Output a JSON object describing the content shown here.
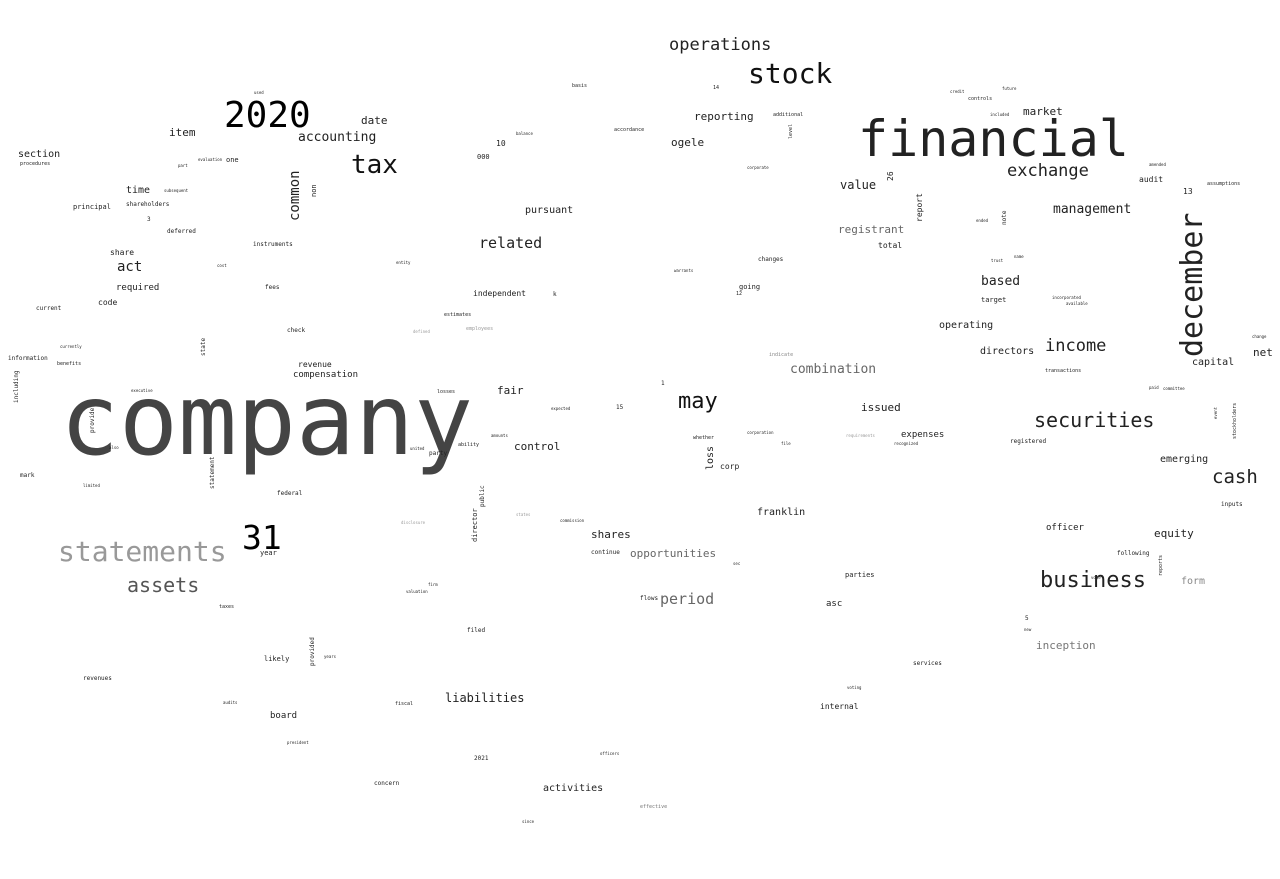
{
  "words": [
    {
      "text": "company",
      "shade": "#444444"
    },
    {
      "text": "financial",
      "shade": "#222222"
    },
    {
      "text": "2020",
      "shade": "#000000"
    },
    {
      "text": "statements",
      "shade": "#999999"
    },
    {
      "text": "december",
      "shade": "#222222"
    },
    {
      "text": "stock",
      "shade": "#111111"
    },
    {
      "text": "tax",
      "shade": "#111111"
    },
    {
      "text": "31",
      "shade": "#000000"
    },
    {
      "text": "business",
      "shade": "#222222"
    },
    {
      "text": "securities",
      "shade": "#222222"
    },
    {
      "text": "assets",
      "shade": "#555555"
    },
    {
      "text": "may",
      "shade": "#111111"
    },
    {
      "text": "cash",
      "shade": "#222222"
    },
    {
      "text": "operations",
      "shade": "#222222"
    },
    {
      "text": "exchange",
      "shade": "#222222"
    },
    {
      "text": "income",
      "shade": "#222222"
    },
    {
      "text": "related",
      "shade": "#222222"
    },
    {
      "text": "period",
      "shade": "#666666"
    },
    {
      "text": "common",
      "shade": "#222222"
    },
    {
      "text": "management",
      "shade": "#222222"
    },
    {
      "text": "combination",
      "shade": "#666666"
    },
    {
      "text": "act",
      "shade": "#222222"
    },
    {
      "text": "accounting",
      "shade": "#222222"
    },
    {
      "text": "liabilities",
      "shade": "#222222"
    },
    {
      "text": "based",
      "shade": "#222222"
    },
    {
      "text": "value",
      "shade": "#222222"
    },
    {
      "text": "registrant",
      "shade": "#666666"
    },
    {
      "text": "equity",
      "shade": "#222222"
    },
    {
      "text": "opportunities",
      "shade": "#666666"
    },
    {
      "text": "reporting",
      "shade": "#222222"
    },
    {
      "text": "ogele",
      "shade": "#222222"
    },
    {
      "text": "market",
      "shade": "#222222"
    },
    {
      "text": "item",
      "shade": "#222222"
    },
    {
      "text": "date",
      "shade": "#222222"
    },
    {
      "text": "time",
      "shade": "#222222"
    },
    {
      "text": "section",
      "shade": "#222222"
    },
    {
      "text": "pursuant",
      "shade": "#222222"
    },
    {
      "text": "fair",
      "shade": "#222222"
    },
    {
      "text": "control",
      "shade": "#222222"
    },
    {
      "text": "shares",
      "shade": "#222222"
    },
    {
      "text": "issued",
      "shade": "#222222"
    },
    {
      "text": "expenses",
      "shade": "#222222"
    },
    {
      "text": "emerging",
      "shade": "#222222"
    },
    {
      "text": "capital",
      "shade": "#222222"
    },
    {
      "text": "net",
      "shade": "#222222"
    },
    {
      "text": "directors",
      "shade": "#222222"
    },
    {
      "text": "operating",
      "shade": "#222222"
    },
    {
      "text": "audit",
      "shade": "#222222"
    },
    {
      "text": "activities",
      "shade": "#222222"
    },
    {
      "text": "franklin",
      "shade": "#222222"
    },
    {
      "text": "inception",
      "shade": "#777777"
    },
    {
      "text": "form",
      "shade": "#888888"
    },
    {
      "text": "compensation",
      "shade": "#222222"
    },
    {
      "text": "required",
      "shade": "#222222"
    },
    {
      "text": "loss",
      "shade": "#222222"
    },
    {
      "text": "officer",
      "shade": "#222222"
    },
    {
      "text": "revenue",
      "shade": "#222222"
    },
    {
      "text": "asc",
      "shade": "#222222"
    },
    {
      "text": "board",
      "shade": "#222222"
    },
    {
      "text": "internal",
      "shade": "#222222"
    },
    {
      "text": "independent",
      "shade": "#222222"
    },
    {
      "text": "share",
      "shade": "#222222"
    },
    {
      "text": "code",
      "shade": "#222222"
    },
    {
      "text": "principal",
      "shade": "#222222"
    },
    {
      "text": "report",
      "shade": "#222222"
    },
    {
      "text": "total",
      "shade": "#222222"
    },
    {
      "text": "likely",
      "shade": "#222222"
    },
    {
      "text": "corp",
      "shade": "#222222"
    },
    {
      "text": "target",
      "shade": "#222222"
    },
    {
      "text": "parties",
      "shade": "#222222"
    },
    {
      "text": "director",
      "shade": "#222222"
    },
    {
      "text": "public",
      "shade": "#222222"
    },
    {
      "text": "year",
      "shade": "#222222"
    },
    {
      "text": "one",
      "shade": "#222222"
    },
    {
      "text": "10",
      "shade": "#222222"
    },
    {
      "text": "13",
      "shade": "#222222"
    },
    {
      "text": "26",
      "shade": "#222222"
    },
    {
      "text": "going",
      "shade": "#222222"
    },
    {
      "text": "changes",
      "shade": "#222222"
    },
    {
      "text": "information",
      "shade": "#222222"
    },
    {
      "text": "current",
      "shade": "#222222"
    },
    {
      "text": "shareholders",
      "shade": "#222222"
    },
    {
      "text": "deferred",
      "shade": "#222222"
    },
    {
      "text": "instruments",
      "shade": "#222222"
    },
    {
      "text": "non",
      "shade": "#222222"
    },
    {
      "text": "state",
      "shade": "#222222"
    },
    {
      "text": "fees",
      "shade": "#222222"
    },
    {
      "text": "check",
      "shade": "#222222"
    },
    {
      "text": "federal",
      "shade": "#222222"
    },
    {
      "text": "filed",
      "shade": "#222222"
    },
    {
      "text": "continue",
      "shade": "#222222"
    },
    {
      "text": "services",
      "shade": "#222222"
    },
    {
      "text": "registered",
      "shade": "#222222"
    },
    {
      "text": "transactions",
      "shade": "#222222"
    },
    {
      "text": "following",
      "shade": "#222222"
    },
    {
      "text": "provided",
      "shade": "#222222"
    },
    {
      "text": "statement",
      "shade": "#222222"
    },
    {
      "text": "including",
      "shade": "#222222"
    },
    {
      "text": "mark",
      "shade": "#222222"
    },
    {
      "text": "revenues",
      "shade": "#222222"
    },
    {
      "text": "party",
      "shade": "#222222"
    },
    {
      "text": "ability",
      "shade": "#222222"
    },
    {
      "text": "losses",
      "shade": "#222222"
    },
    {
      "text": "benefits",
      "shade": "#222222"
    },
    {
      "text": "provide",
      "shade": "#222222"
    },
    {
      "text": "inputs",
      "shade": "#222222"
    },
    {
      "text": "stockholders",
      "shade": "#222222"
    },
    {
      "text": "reports",
      "shade": "#222222"
    },
    {
      "text": "note",
      "shade": "#222222"
    },
    {
      "text": "2021",
      "shade": "#222222"
    },
    {
      "text": "concern",
      "shade": "#222222"
    },
    {
      "text": "flows",
      "shade": "#222222"
    },
    {
      "text": "fiscal",
      "shade": "#222222"
    },
    {
      "text": "taxes",
      "shade": "#222222"
    },
    {
      "text": "000",
      "shade": "#222222"
    },
    {
      "text": "3",
      "shade": "#222222"
    },
    {
      "text": "1",
      "shade": "#222222"
    },
    {
      "text": "15",
      "shade": "#222222"
    },
    {
      "text": "5",
      "shade": "#222222"
    },
    {
      "text": "14",
      "shade": "#222222"
    },
    {
      "text": "k",
      "shade": "#222222"
    },
    {
      "text": "basis",
      "shade": "#222222"
    },
    {
      "text": "used",
      "shade": "#222222"
    },
    {
      "text": "procedures",
      "shade": "#222222"
    },
    {
      "text": "part",
      "shade": "#222222"
    },
    {
      "text": "evaluation",
      "shade": "#222222"
    },
    {
      "text": "subsequent",
      "shade": "#222222"
    },
    {
      "text": "cost",
      "shade": "#222222"
    },
    {
      "text": "entity",
      "shade": "#222222"
    },
    {
      "text": "balance",
      "shade": "#222222"
    },
    {
      "text": "accordance",
      "shade": "#222222"
    },
    {
      "text": "additional",
      "shade": "#222222"
    },
    {
      "text": "level",
      "shade": "#222222"
    },
    {
      "text": "corporate",
      "shade": "#222222"
    },
    {
      "text": "controls",
      "shade": "#222222"
    },
    {
      "text": "credit",
      "shade": "#222222"
    },
    {
      "text": "future",
      "shade": "#222222"
    },
    {
      "text": "included",
      "shade": "#222222"
    },
    {
      "text": "amended",
      "shade": "#222222"
    },
    {
      "text": "assumptions",
      "shade": "#222222"
    },
    {
      "text": "ended",
      "shade": "#222222"
    },
    {
      "text": "trust",
      "shade": "#222222"
    },
    {
      "text": "warrants",
      "shade": "#222222"
    },
    {
      "text": "12",
      "shade": "#222222"
    },
    {
      "text": "incorporated",
      "shade": "#222222"
    },
    {
      "text": "available",
      "shade": "#222222"
    },
    {
      "text": "name",
      "shade": "#222222"
    },
    {
      "text": "change",
      "shade": "#222222"
    },
    {
      "text": "paid",
      "shade": "#222222"
    },
    {
      "text": "committee",
      "shade": "#222222"
    },
    {
      "text": "event",
      "shade": "#222222"
    },
    {
      "text": "indicate",
      "shade": "#888888"
    },
    {
      "text": "estimates",
      "shade": "#222222"
    },
    {
      "text": "employees",
      "shade": "#999999"
    },
    {
      "text": "defined",
      "shade": "#999999"
    },
    {
      "text": "currently",
      "shade": "#222222"
    },
    {
      "text": "executive",
      "shade": "#222222"
    },
    {
      "text": "also",
      "shade": "#222222"
    },
    {
      "text": "limited",
      "shade": "#222222"
    },
    {
      "text": "united",
      "shade": "#222222"
    },
    {
      "text": "amounts",
      "shade": "#222222"
    },
    {
      "text": "expected",
      "shade": "#222222"
    },
    {
      "text": "whether",
      "shade": "#222222"
    },
    {
      "text": "corporation",
      "shade": "#222222"
    },
    {
      "text": "file",
      "shade": "#222222"
    },
    {
      "text": "requirements",
      "shade": "#999999"
    },
    {
      "text": "recognized",
      "shade": "#222222"
    },
    {
      "text": "firm",
      "shade": "#222222"
    },
    {
      "text": "valuation",
      "shade": "#222222"
    },
    {
      "text": "years",
      "shade": "#222222"
    },
    {
      "text": "audits",
      "shade": "#222222"
    },
    {
      "text": "president",
      "shade": "#222222"
    },
    {
      "text": "officers",
      "shade": "#222222"
    },
    {
      "text": "effective",
      "shade": "#777777"
    },
    {
      "text": "since",
      "shade": "#222222"
    },
    {
      "text": "commission",
      "shade": "#222222"
    },
    {
      "text": "states",
      "shade": "#999999"
    },
    {
      "text": "disclosure",
      "shade": "#999999"
    },
    {
      "text": "new",
      "shade": "#222222"
    },
    {
      "text": "vote",
      "shade": "#222222"
    },
    {
      "text": "voting",
      "shade": "#222222"
    },
    {
      "text": "sec",
      "shade": "#222222"
    }
  ]
}
